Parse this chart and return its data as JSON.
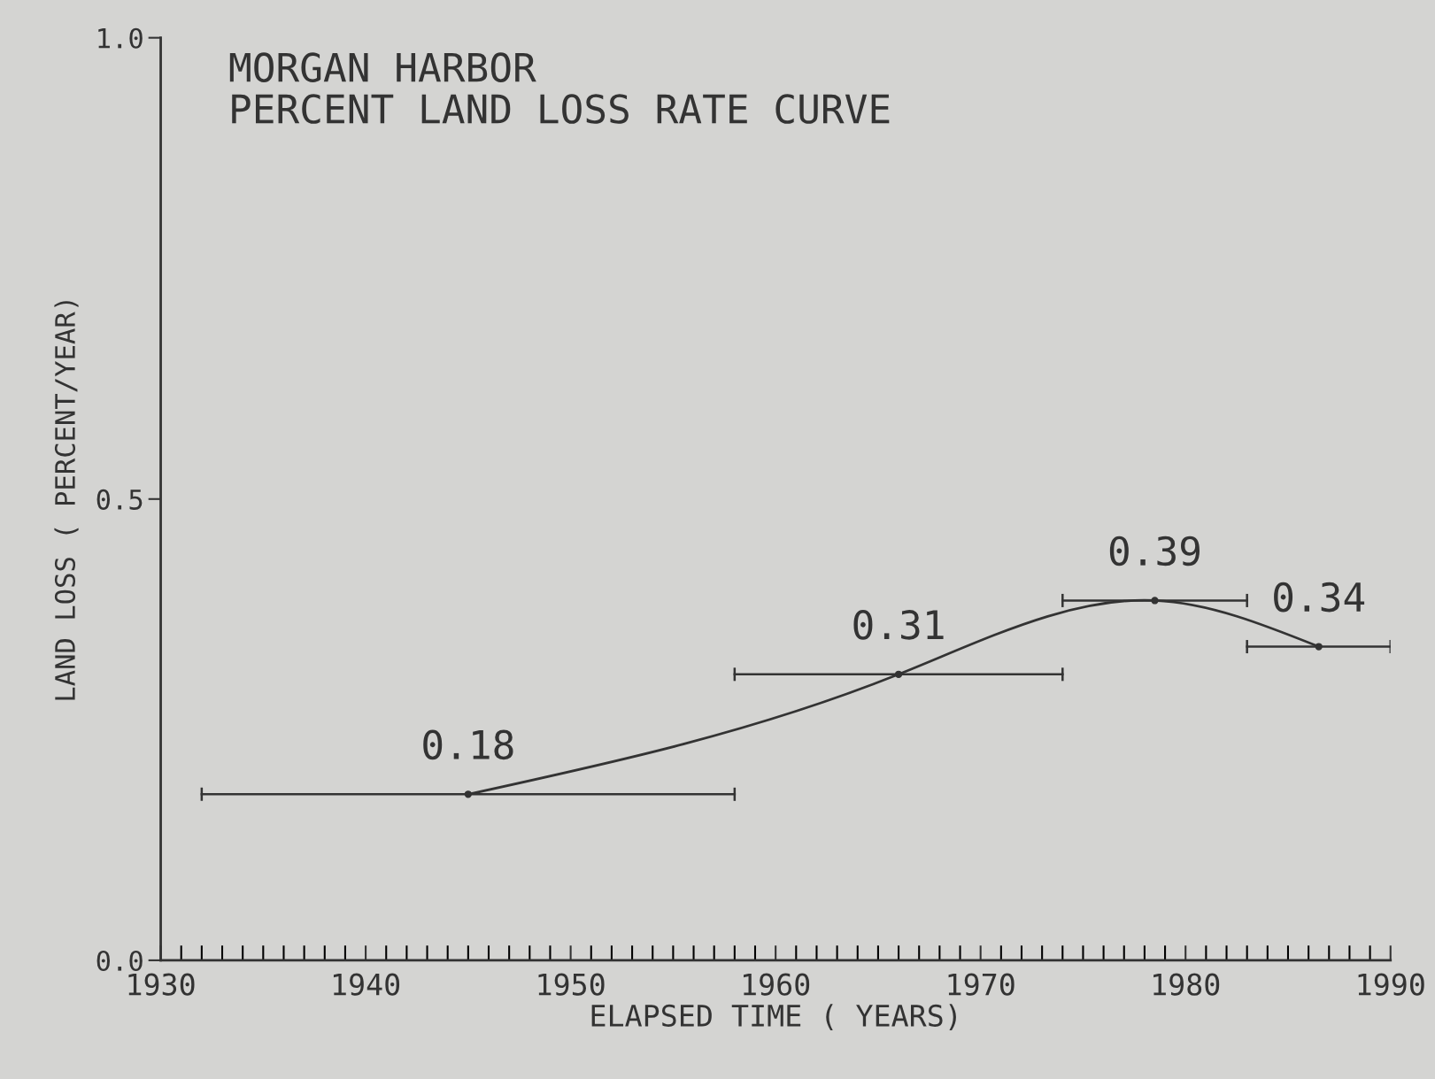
{
  "chart_data": {
    "type": "line",
    "title": "MORGAN HARBOR",
    "subtitle": "PERCENT LAND LOSS RATE CURVE",
    "xlabel": "ELAPSED TIME ( YEARS)",
    "ylabel": "LAND LOSS ( PERCENT/YEAR)",
    "x": [
      1945,
      1966,
      1978.5,
      1986.5
    ],
    "values": [
      0.18,
      0.31,
      0.39,
      0.34
    ],
    "xerrors": [
      [
        1932,
        1958
      ],
      [
        1958,
        1974
      ],
      [
        1974,
        1983
      ],
      [
        1983,
        1990
      ]
    ],
    "color": "#333333",
    "data_labels": true,
    "marker": "circle",
    "line_style": "solid",
    "grid": false,
    "xlim": [
      1930,
      1990
    ],
    "ylim": [
      0,
      1
    ],
    "xticks": [
      1930,
      1940,
      1950,
      1960,
      1970,
      1980,
      1990
    ],
    "yticks": [
      {
        "value": 0,
        "label": "0.0"
      },
      {
        "value": 0.5,
        "label": "0.5"
      },
      {
        "value": 1,
        "label": "1.0"
      }
    ]
  }
}
